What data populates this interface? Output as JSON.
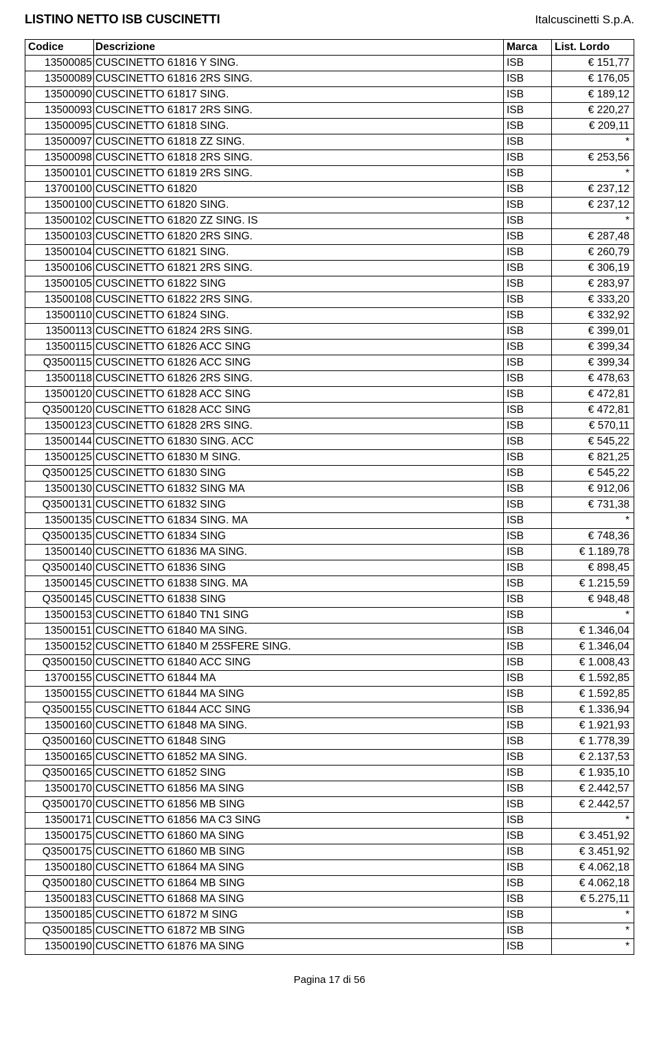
{
  "header": {
    "title_left": "LISTINO NETTO ISB CUSCINETTI",
    "title_right": "Italcuscinetti S.p.A."
  },
  "table": {
    "columns": {
      "codice": "Codice",
      "descrizione": "Descrizione",
      "marca": "Marca",
      "lordo": "List. Lordo"
    },
    "rows": [
      {
        "codice": "13500085",
        "descrizione": "CUSCINETTO 61816 Y SING.",
        "marca": "ISB",
        "lordo": "€ 151,77"
      },
      {
        "codice": "13500089",
        "descrizione": "CUSCINETTO 61816 2RS SING.",
        "marca": "ISB",
        "lordo": "€ 176,05"
      },
      {
        "codice": "13500090",
        "descrizione": "CUSCINETTO 61817 SING.",
        "marca": "ISB",
        "lordo": "€ 189,12"
      },
      {
        "codice": "13500093",
        "descrizione": "CUSCINETTO 61817 2RS SING.",
        "marca": "ISB",
        "lordo": "€ 220,27"
      },
      {
        "codice": "13500095",
        "descrizione": "CUSCINETTO 61818 SING.",
        "marca": "ISB",
        "lordo": "€ 209,11"
      },
      {
        "codice": "13500097",
        "descrizione": "CUSCINETTO 61818 ZZ SING.",
        "marca": "ISB",
        "lordo": "*"
      },
      {
        "codice": "13500098",
        "descrizione": "CUSCINETTO 61818 2RS SING.",
        "marca": "ISB",
        "lordo": "€ 253,56"
      },
      {
        "codice": "13500101",
        "descrizione": "CUSCINETTO 61819 2RS SING.",
        "marca": "ISB",
        "lordo": "*"
      },
      {
        "codice": "13700100",
        "descrizione": "CUSCINETTO 61820",
        "marca": "ISB",
        "lordo": "€ 237,12"
      },
      {
        "codice": "13500100",
        "descrizione": "CUSCINETTO 61820 SING.",
        "marca": "ISB",
        "lordo": "€ 237,12"
      },
      {
        "codice": "13500102",
        "descrizione": "CUSCINETTO 61820 ZZ SING.     IS",
        "marca": "ISB",
        "lordo": "*"
      },
      {
        "codice": "13500103",
        "descrizione": "CUSCINETTO 61820 2RS SING.",
        "marca": "ISB",
        "lordo": "€ 287,48"
      },
      {
        "codice": "13500104",
        "descrizione": "CUSCINETTO 61821 SING.",
        "marca": "ISB",
        "lordo": "€ 260,79"
      },
      {
        "codice": "13500106",
        "descrizione": "CUSCINETTO 61821 2RS SING.",
        "marca": "ISB",
        "lordo": "€ 306,19"
      },
      {
        "codice": "13500105",
        "descrizione": "CUSCINETTO 61822 SING",
        "marca": "ISB",
        "lordo": "€ 283,97"
      },
      {
        "codice": "13500108",
        "descrizione": "CUSCINETTO 61822 2RS SING.",
        "marca": "ISB",
        "lordo": "€ 333,20"
      },
      {
        "codice": "13500110",
        "descrizione": "CUSCINETTO 61824 SING.",
        "marca": "ISB",
        "lordo": "€ 332,92"
      },
      {
        "codice": "13500113",
        "descrizione": "CUSCINETTO 61824 2RS SING.",
        "marca": "ISB",
        "lordo": "€ 399,01"
      },
      {
        "codice": "13500115",
        "descrizione": "CUSCINETTO 61826 ACC SING",
        "marca": "ISB",
        "lordo": "€ 399,34"
      },
      {
        "codice": "Q3500115",
        "descrizione": "CUSCINETTO 61826 ACC SING",
        "marca": "ISB",
        "lordo": "€ 399,34"
      },
      {
        "codice": "13500118",
        "descrizione": "CUSCINETTO 61826 2RS SING.",
        "marca": "ISB",
        "lordo": "€ 478,63"
      },
      {
        "codice": "13500120",
        "descrizione": "CUSCINETTO 61828 ACC SING",
        "marca": "ISB",
        "lordo": "€ 472,81"
      },
      {
        "codice": "Q3500120",
        "descrizione": "CUSCINETTO 61828 ACC SING",
        "marca": "ISB",
        "lordo": "€ 472,81"
      },
      {
        "codice": "13500123",
        "descrizione": "CUSCINETTO 61828 2RS SING.",
        "marca": "ISB",
        "lordo": "€ 570,11"
      },
      {
        "codice": "13500144",
        "descrizione": "CUSCINETTO 61830 SING. ACC",
        "marca": "ISB",
        "lordo": "€ 545,22"
      },
      {
        "codice": "13500125",
        "descrizione": "CUSCINETTO 61830 M SING.",
        "marca": "ISB",
        "lordo": "€ 821,25"
      },
      {
        "codice": "Q3500125",
        "descrizione": "CUSCINETTO 61830 SING",
        "marca": "ISB",
        "lordo": "€ 545,22"
      },
      {
        "codice": "13500130",
        "descrizione": "CUSCINETTO 61832 SING  MA",
        "marca": "ISB",
        "lordo": "€ 912,06"
      },
      {
        "codice": "Q3500131",
        "descrizione": "CUSCINETTO 61832 SING",
        "marca": "ISB",
        "lordo": "€ 731,38"
      },
      {
        "codice": "13500135",
        "descrizione": "CUSCINETTO 61834 SING. MA",
        "marca": "ISB",
        "lordo": "*"
      },
      {
        "codice": "Q3500135",
        "descrizione": "CUSCINETTO 61834 SING",
        "marca": "ISB",
        "lordo": "€ 748,36"
      },
      {
        "codice": "13500140",
        "descrizione": "CUSCINETTO 61836 MA SING.",
        "marca": "ISB",
        "lordo": "€ 1.189,78"
      },
      {
        "codice": "Q3500140",
        "descrizione": "CUSCINETTO 61836 SING",
        "marca": "ISB",
        "lordo": "€ 898,45"
      },
      {
        "codice": "13500145",
        "descrizione": "CUSCINETTO 61838 SING. MA",
        "marca": "ISB",
        "lordo": "€ 1.215,59"
      },
      {
        "codice": "Q3500145",
        "descrizione": "CUSCINETTO 61838 SING",
        "marca": "ISB",
        "lordo": "€ 948,48"
      },
      {
        "codice": "13500153",
        "descrizione": "CUSCINETTO 61840 TN1  SING",
        "marca": "ISB",
        "lordo": "*"
      },
      {
        "codice": "13500151",
        "descrizione": "CUSCINETTO 61840 MA SING.",
        "marca": "ISB",
        "lordo": "€ 1.346,04"
      },
      {
        "codice": "13500152",
        "descrizione": "CUSCINETTO 61840 M 25SFERE SING.",
        "marca": "ISB",
        "lordo": "€ 1.346,04"
      },
      {
        "codice": "Q3500150",
        "descrizione": "CUSCINETTO 61840 ACC SING",
        "marca": "ISB",
        "lordo": "€ 1.008,43"
      },
      {
        "codice": "13700155",
        "descrizione": "CUSCINETTO 61844 MA",
        "marca": "ISB",
        "lordo": "€ 1.592,85"
      },
      {
        "codice": "13500155",
        "descrizione": "CUSCINETTO 61844 MA SING",
        "marca": "ISB",
        "lordo": "€ 1.592,85"
      },
      {
        "codice": "Q3500155",
        "descrizione": "CUSCINETTO 61844 ACC SING",
        "marca": "ISB",
        "lordo": "€ 1.336,94"
      },
      {
        "codice": "13500160",
        "descrizione": "CUSCINETTO 61848 MA SING.",
        "marca": "ISB",
        "lordo": "€ 1.921,93"
      },
      {
        "codice": "Q3500160",
        "descrizione": "CUSCINETTO 61848 SING",
        "marca": "ISB",
        "lordo": "€ 1.778,39"
      },
      {
        "codice": "13500165",
        "descrizione": "CUSCINETTO 61852 MA SING.",
        "marca": "ISB",
        "lordo": "€ 2.137,53"
      },
      {
        "codice": "Q3500165",
        "descrizione": "CUSCINETTO 61852 SING",
        "marca": "ISB",
        "lordo": "€ 1.935,10"
      },
      {
        "codice": "13500170",
        "descrizione": "CUSCINETTO 61856 MA SING",
        "marca": "ISB",
        "lordo": "€ 2.442,57"
      },
      {
        "codice": "Q3500170",
        "descrizione": "CUSCINETTO 61856 MB SING",
        "marca": "ISB",
        "lordo": "€ 2.442,57"
      },
      {
        "codice": "13500171",
        "descrizione": "CUSCINETTO 61856 MA C3  SING",
        "marca": "ISB",
        "lordo": "*"
      },
      {
        "codice": "13500175",
        "descrizione": "CUSCINETTO 61860 MA SING",
        "marca": "ISB",
        "lordo": "€ 3.451,92"
      },
      {
        "codice": "Q3500175",
        "descrizione": "CUSCINETTO 61860 MB SING",
        "marca": "ISB",
        "lordo": "€ 3.451,92"
      },
      {
        "codice": "13500180",
        "descrizione": "CUSCINETTO 61864 MA SING",
        "marca": "ISB",
        "lordo": "€ 4.062,18"
      },
      {
        "codice": "Q3500180",
        "descrizione": "CUSCINETTO 61864 MB SING",
        "marca": "ISB",
        "lordo": "€ 4.062,18"
      },
      {
        "codice": "13500183",
        "descrizione": "CUSCINETTO 61868 MA SING",
        "marca": "ISB",
        "lordo": "€ 5.275,11"
      },
      {
        "codice": "13500185",
        "descrizione": "CUSCINETTO 61872 M SING",
        "marca": "ISB",
        "lordo": "*"
      },
      {
        "codice": "Q3500185",
        "descrizione": "CUSCINETTO 61872 MB SING",
        "marca": "ISB",
        "lordo": "*"
      },
      {
        "codice": "13500190",
        "descrizione": "CUSCINETTO 61876 MA SING",
        "marca": "ISB",
        "lordo": "*"
      }
    ]
  },
  "footer": {
    "text": "Pagina 17 di 56"
  },
  "style": {
    "font_family": "Arial",
    "header_font_size": 18,
    "company_font_size": 17,
    "body_font_size": 15.5,
    "footer_font_size": 15,
    "border_color": "#000000",
    "background_color": "#ffffff",
    "text_color": "#000000"
  }
}
